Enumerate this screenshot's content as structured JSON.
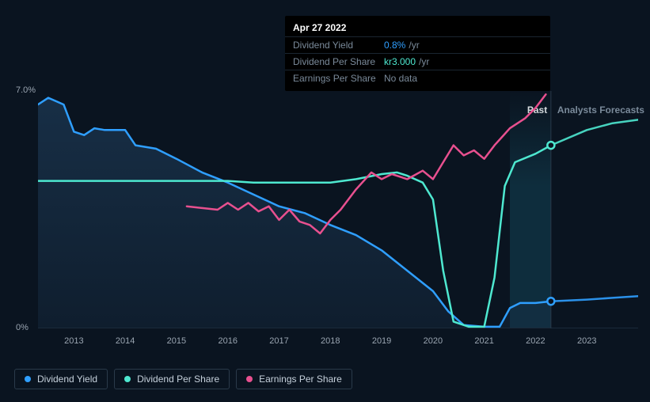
{
  "tooltip": {
    "date": "Apr 27 2022",
    "rows": [
      {
        "label": "Dividend Yield",
        "value": "0.8%",
        "unit": "/yr",
        "color": "#2f9fff"
      },
      {
        "label": "Dividend Per Share",
        "value": "kr3.000",
        "unit": "/yr",
        "color": "#4ee8d0"
      },
      {
        "label": "Earnings Per Share",
        "value": "No data",
        "unit": "",
        "color": "#7a8a9a"
      }
    ]
  },
  "y_axis": {
    "max_label": "7.0%",
    "min_label": "0%",
    "max": 7.0,
    "min": 0
  },
  "x_axis": {
    "start_year": 2012.3,
    "end_year": 2024.0,
    "tick_years": [
      2013,
      2014,
      2015,
      2016,
      2017,
      2018,
      2019,
      2020,
      2021,
      2022,
      2023
    ]
  },
  "sections": {
    "past": {
      "label": "Past",
      "end_year": 2022.3,
      "label_color": "#ffffff"
    },
    "forecast": {
      "label": "Analysts Forecasts",
      "label_color": "#7a8a9a"
    }
  },
  "marker_year": 2022.3,
  "shaded_band": {
    "start_year": 2021.5,
    "end_year": 2022.3
  },
  "colors": {
    "dividend_yield": "#2f9fff",
    "dividend_per_share": "#4ee8d0",
    "earnings_per_share": "#e8508f",
    "area_fill": "#183048",
    "grid": "#1a2a3a",
    "background": "#0a1420",
    "shaded_band": "#0f3040"
  },
  "series": {
    "dividend_yield": {
      "points": [
        [
          2012.3,
          6.6
        ],
        [
          2012.5,
          6.8
        ],
        [
          2012.8,
          6.6
        ],
        [
          2013.0,
          5.8
        ],
        [
          2013.2,
          5.7
        ],
        [
          2013.4,
          5.9
        ],
        [
          2013.6,
          5.85
        ],
        [
          2014.0,
          5.85
        ],
        [
          2014.2,
          5.4
        ],
        [
          2014.6,
          5.3
        ],
        [
          2015.0,
          5.0
        ],
        [
          2015.5,
          4.6
        ],
        [
          2016.0,
          4.3
        ],
        [
          2016.5,
          3.95
        ],
        [
          2017.0,
          3.6
        ],
        [
          2017.5,
          3.4
        ],
        [
          2018.0,
          3.05
        ],
        [
          2018.5,
          2.75
        ],
        [
          2019.0,
          2.3
        ],
        [
          2019.5,
          1.7
        ],
        [
          2020.0,
          1.1
        ],
        [
          2020.3,
          0.5
        ],
        [
          2020.6,
          0.1
        ],
        [
          2021.0,
          0.05
        ],
        [
          2021.3,
          0.05
        ],
        [
          2021.5,
          0.6
        ],
        [
          2021.7,
          0.75
        ],
        [
          2022.0,
          0.75
        ],
        [
          2022.3,
          0.8
        ],
        [
          2023.0,
          0.85
        ],
        [
          2023.5,
          0.9
        ],
        [
          2024.0,
          0.95
        ]
      ]
    },
    "dividend_per_share": {
      "points": [
        [
          2012.3,
          4.35
        ],
        [
          2014.0,
          4.35
        ],
        [
          2015.0,
          4.35
        ],
        [
          2016.0,
          4.35
        ],
        [
          2016.5,
          4.3
        ],
        [
          2017.0,
          4.3
        ],
        [
          2018.0,
          4.3
        ],
        [
          2018.5,
          4.4
        ],
        [
          2019.0,
          4.55
        ],
        [
          2019.3,
          4.6
        ],
        [
          2019.5,
          4.5
        ],
        [
          2019.8,
          4.3
        ],
        [
          2020.0,
          3.8
        ],
        [
          2020.2,
          1.7
        ],
        [
          2020.4,
          0.2
        ],
        [
          2020.7,
          0.05
        ],
        [
          2021.0,
          0.05
        ],
        [
          2021.2,
          1.5
        ],
        [
          2021.4,
          4.2
        ],
        [
          2021.6,
          4.9
        ],
        [
          2022.0,
          5.15
        ],
        [
          2022.3,
          5.4
        ],
        [
          2023.0,
          5.85
        ],
        [
          2023.5,
          6.05
        ],
        [
          2024.0,
          6.15
        ]
      ]
    },
    "earnings_per_share": {
      "points": [
        [
          2015.2,
          3.6
        ],
        [
          2015.5,
          3.55
        ],
        [
          2015.8,
          3.5
        ],
        [
          2016.0,
          3.7
        ],
        [
          2016.2,
          3.5
        ],
        [
          2016.4,
          3.7
        ],
        [
          2016.6,
          3.45
        ],
        [
          2016.8,
          3.6
        ],
        [
          2017.0,
          3.2
        ],
        [
          2017.2,
          3.5
        ],
        [
          2017.4,
          3.15
        ],
        [
          2017.6,
          3.05
        ],
        [
          2017.8,
          2.8
        ],
        [
          2018.0,
          3.2
        ],
        [
          2018.2,
          3.5
        ],
        [
          2018.5,
          4.1
        ],
        [
          2018.8,
          4.6
        ],
        [
          2019.0,
          4.4
        ],
        [
          2019.2,
          4.55
        ],
        [
          2019.5,
          4.4
        ],
        [
          2019.8,
          4.65
        ],
        [
          2020.0,
          4.4
        ],
        [
          2020.2,
          4.9
        ],
        [
          2020.4,
          5.4
        ],
        [
          2020.6,
          5.1
        ],
        [
          2020.8,
          5.25
        ],
        [
          2021.0,
          5.0
        ],
        [
          2021.2,
          5.4
        ],
        [
          2021.5,
          5.9
        ],
        [
          2021.8,
          6.2
        ],
        [
          2022.0,
          6.5
        ],
        [
          2022.2,
          6.9
        ]
      ]
    }
  },
  "legend": [
    {
      "label": "Dividend Yield",
      "color": "#2f9fff"
    },
    {
      "label": "Dividend Per Share",
      "color": "#4ee8d0"
    },
    {
      "label": "Earnings Per Share",
      "color": "#e8508f"
    }
  ]
}
